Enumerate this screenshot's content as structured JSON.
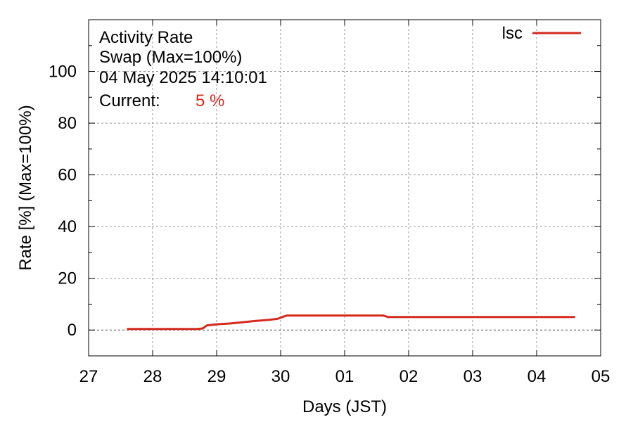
{
  "chart_data": {
    "type": "line",
    "title_lines": [
      "Activity Rate",
      "Swap (Max=100%)",
      "04 May 2025 14:10:01"
    ],
    "current_label": "Current:",
    "current_value": "5 %",
    "xlabel": "Days (JST)",
    "ylabel": "Rate [%]  (Max=100%)",
    "x_ticks": [
      "27",
      "28",
      "29",
      "30",
      "01",
      "02",
      "03",
      "04",
      "05"
    ],
    "y_ticks": [
      "0",
      "20",
      "40",
      "60",
      "80",
      "100"
    ],
    "xlim": [
      0,
      8
    ],
    "ylim": [
      -10,
      120
    ],
    "grid": true,
    "legend_position": "top-right",
    "series": [
      {
        "name": "lsc",
        "color": "#d42a1e",
        "points": [
          [
            0.6,
            0.4
          ],
          [
            1.7,
            0.4
          ],
          [
            1.78,
            0.6
          ],
          [
            1.85,
            1.8
          ],
          [
            2.0,
            2.2
          ],
          [
            2.2,
            2.5
          ],
          [
            2.4,
            3.0
          ],
          [
            2.6,
            3.5
          ],
          [
            2.8,
            3.9
          ],
          [
            2.95,
            4.3
          ],
          [
            3.0,
            4.8
          ],
          [
            3.1,
            5.6
          ],
          [
            3.6,
            5.6
          ],
          [
            4.6,
            5.6
          ],
          [
            4.68,
            5.0
          ],
          [
            8.0,
            5.0
          ],
          [
            7.6,
            5.0
          ]
        ]
      }
    ]
  }
}
